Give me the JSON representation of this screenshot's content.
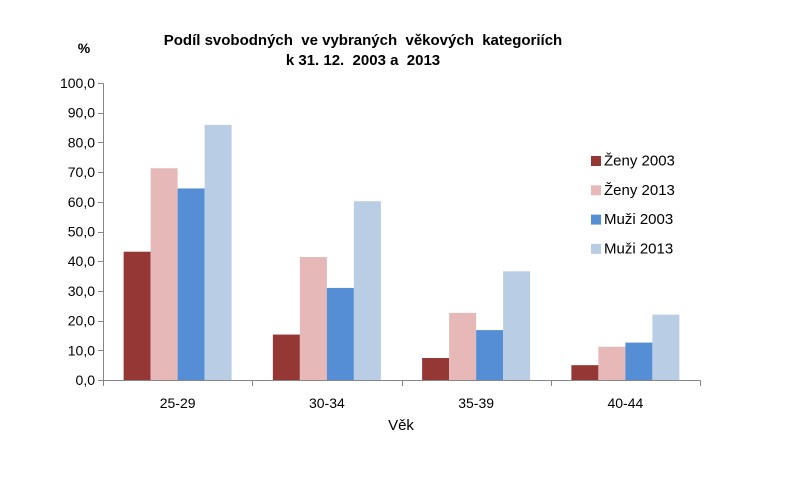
{
  "chart_data": {
    "type": "bar",
    "title": [
      "Podíl svobodných  ve vybraných  věkových  kategoriích",
      "k 31. 12.  2003 a  2013"
    ],
    "xlabel": "Věk",
    "ylabel": "%",
    "ylim": [
      0,
      100
    ],
    "yticks": [
      0,
      10,
      20,
      30,
      40,
      50,
      60,
      70,
      80,
      90,
      100
    ],
    "ytick_labels": [
      "0,0",
      "10,0",
      "20,0",
      "30,0",
      "40,0",
      "50,0",
      "60,0",
      "70,0",
      "80,0",
      "90,0",
      "100,0"
    ],
    "categories": [
      "25-29",
      "30-34",
      "35-39",
      "40-44"
    ],
    "series": [
      {
        "name": "Ženy 2003",
        "color": "#953735",
        "values": [
          43.2,
          15.3,
          7.4,
          5.0
        ]
      },
      {
        "name": "Ženy 2013",
        "color": "#E6B9B8",
        "values": [
          71.3,
          41.4,
          22.6,
          11.2
        ]
      },
      {
        "name": "Muži 2003",
        "color": "#558ED5",
        "values": [
          64.5,
          31.0,
          16.8,
          12.6
        ]
      },
      {
        "name": "Muži 2013",
        "color": "#B9CDE5",
        "values": [
          85.9,
          60.2,
          36.6,
          22.0
        ]
      }
    ],
    "legend": "right",
    "grid": false,
    "axis_color": "#868686"
  }
}
